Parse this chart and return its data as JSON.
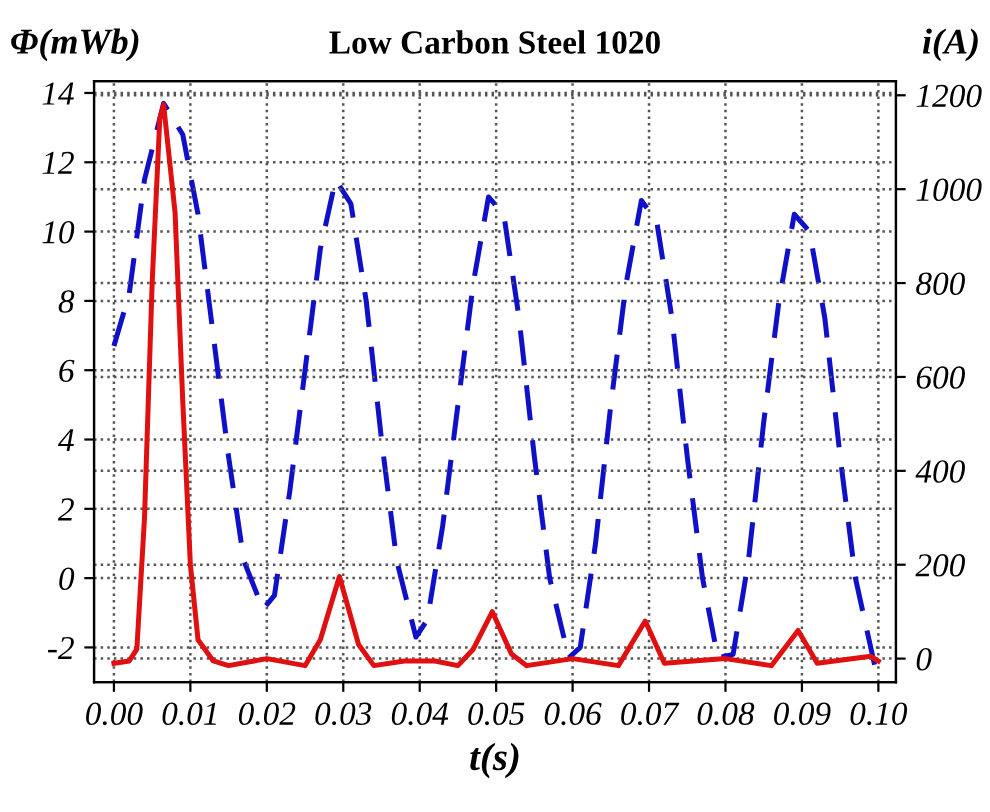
{
  "chart_data": {
    "type": "line",
    "title": "Low Carbon Steel 1020",
    "xlabel": "t(s)",
    "ylabel": "Φ(mWb)",
    "y2label": "i(A)",
    "xlim": [
      -0.0026,
      0.1023
    ],
    "xticks": [
      {
        "value": 0,
        "label": "0.00"
      },
      0.01,
      0.02,
      0.03,
      0.04,
      0.05,
      0.06,
      0.07,
      0.08,
      0.09,
      {
        "value": 0.1,
        "label": "0.10"
      }
    ],
    "ylim": [
      -3,
      14.34
    ],
    "yticks": [
      -2,
      0,
      2,
      4,
      6,
      8,
      10,
      12,
      14
    ],
    "y2lim": [
      -50,
      1230
    ],
    "y2ticks": [
      0,
      200,
      400,
      600,
      800,
      1000,
      1200
    ],
    "grid": true,
    "legend": false,
    "series": [
      {
        "color": "#1010c8",
        "line_style": "dashed",
        "axis": "y",
        "x": [
          0,
          0.002,
          0.004,
          0.0065,
          0.009,
          0.011,
          0.013,
          0.015,
          0.017,
          0.0195,
          0.021,
          0.023,
          0.025,
          0.027,
          0.029,
          0.031,
          0.033,
          0.035,
          0.037,
          0.0395,
          0.041,
          0.043,
          0.045,
          0.047,
          0.049,
          0.051,
          0.053,
          0.055,
          0.057,
          0.0595,
          0.061,
          0.063,
          0.065,
          0.067,
          0.069,
          0.071,
          0.073,
          0.075,
          0.077,
          0.079,
          0.081,
          0.083,
          0.085,
          0.087,
          0.089,
          0.091,
          0.093,
          0.095,
          0.097,
          0.0995
        ],
        "values": [
          6.7,
          8.2,
          11.5,
          13.7,
          12.8,
          10.5,
          7,
          3.5,
          0.5,
          -0.9,
          -0.5,
          2.5,
          6,
          9.5,
          11.5,
          10.8,
          8,
          4,
          0.5,
          -1.7,
          -1.2,
          1.5,
          5,
          8.5,
          11,
          10.5,
          7.5,
          3.5,
          0,
          -2.3,
          -2,
          1,
          5,
          8.5,
          10.9,
          10.3,
          7.5,
          3.5,
          0,
          -2.3,
          -2.2,
          0.5,
          4.5,
          8,
          10.5,
          10,
          7.5,
          3.5,
          0,
          -2.5
        ]
      },
      {
        "color": "#e01010",
        "line_style": "solid",
        "axis": "y2",
        "x": [
          0,
          0.002,
          0.003,
          0.004,
          0.005,
          0.006,
          0.0065,
          0.008,
          0.009,
          0.01,
          0.011,
          0.013,
          0.015,
          0.02,
          0.025,
          0.027,
          0.0295,
          0.032,
          0.034,
          0.038,
          0.042,
          0.045,
          0.047,
          0.0495,
          0.052,
          0.054,
          0.06,
          0.066,
          0.0695,
          0.072,
          0.08,
          0.086,
          0.0895,
          0.092,
          0.099,
          0.1
        ],
        "values": [
          -10,
          -5,
          20,
          300,
          800,
          1150,
          1180,
          950,
          550,
          200,
          40,
          -5,
          -15,
          0,
          -15,
          40,
          175,
          30,
          -15,
          -5,
          -5,
          -15,
          20,
          100,
          10,
          -15,
          0,
          -15,
          80,
          -10,
          0,
          -15,
          60,
          -10,
          5,
          -5
        ]
      }
    ]
  }
}
